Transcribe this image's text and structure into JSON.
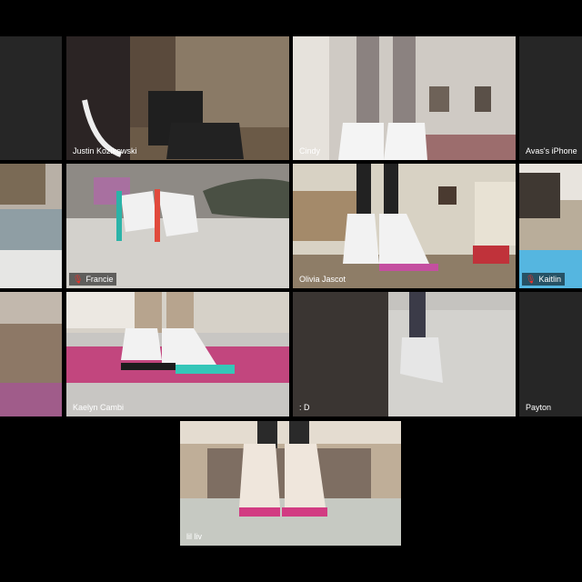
{
  "participants": [
    {
      "name": "Justin Kozikowski",
      "muted": false
    },
    {
      "name": "Cindy",
      "muted": false
    },
    {
      "name": "Avas's iPhone",
      "muted": false
    },
    {
      "name": "Francie",
      "muted": true
    },
    {
      "name": "Olivia Jascot",
      "muted": false
    },
    {
      "name": "Kaitlin",
      "muted": true
    },
    {
      "name": "Kaelyn Cambi",
      "muted": false
    },
    {
      "name": ": D",
      "muted": false
    },
    {
      "name": "Payton",
      "muted": false
    },
    {
      "name": "lil liv",
      "muted": false
    }
  ],
  "icons": {
    "mute": "microphone-muted-icon"
  },
  "colors": {
    "active_speaker_border": "#b7d94a",
    "mute_red": "#e8322b"
  }
}
